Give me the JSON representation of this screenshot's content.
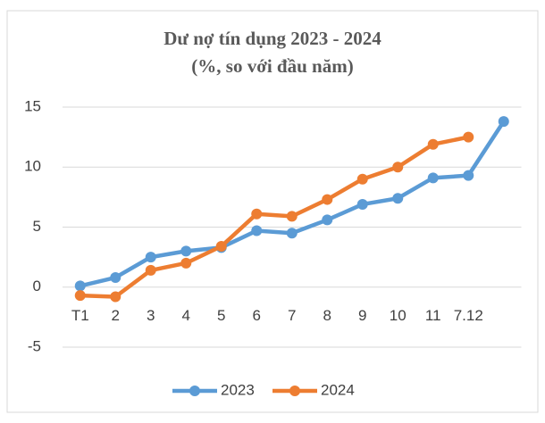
{
  "chart_data": {
    "type": "line",
    "title": "Dư nợ tín dụng 2023 - 2024",
    "subtitle": "(%, so với đầu năm)",
    "categories": [
      "T1",
      "2",
      "3",
      "4",
      "5",
      "6",
      "7",
      "8",
      "9",
      "10",
      "11",
      "7.12",
      null
    ],
    "series": [
      {
        "name": "2023",
        "color": "#5b9bd5",
        "values": [
          0.1,
          0.8,
          2.5,
          3.0,
          3.3,
          4.7,
          4.5,
          5.6,
          6.9,
          7.4,
          9.1,
          9.3,
          13.8
        ]
      },
      {
        "name": "2024",
        "color": "#ed7d31",
        "values": [
          -0.7,
          -0.8,
          1.4,
          2.0,
          3.4,
          6.1,
          5.9,
          7.3,
          9.0,
          10.0,
          11.9,
          12.5,
          null
        ]
      }
    ],
    "ylim": [
      -5,
      15
    ],
    "yticks": [
      -5,
      0,
      5,
      10,
      15
    ],
    "grid": true,
    "legend": "bottom"
  }
}
